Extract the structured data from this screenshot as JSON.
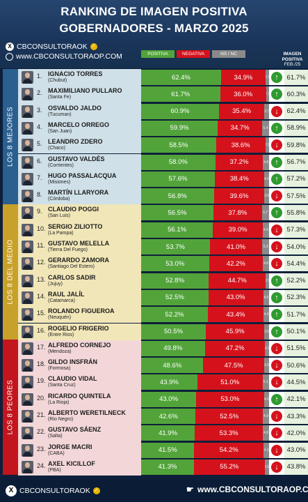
{
  "title_line1": "RANKING DE IMAGEN POSITIVA",
  "title_line2": "GOBERNADORES - MARZO 2025",
  "brand": {
    "handle": "CBCONSULTORAOK",
    "website": "www.CBCONSULTORAOP.COM"
  },
  "legend": {
    "positive": "POSITIVA",
    "negative": "NEGATIVA",
    "ns": "NS / NC"
  },
  "prev_header": {
    "line1": "IMAGEN",
    "line2": "POSITIVA",
    "line3": "FEB./25"
  },
  "groups": [
    "LOS 8 MEJORES",
    "LOS 8 DEL MEDIO",
    "LOS 8 PEORES"
  ],
  "colors": {
    "positive": "#52a43a",
    "negative": "#d5121c",
    "ns": "#8a8a8a",
    "up": "#2f9a2f",
    "down": "#d5121c"
  },
  "footer": {
    "handle": "CBCONSULTORAOK",
    "website": "www.CBCONSULTORAOP.COM"
  },
  "chart_data": {
    "type": "bar",
    "title": "RANKING DE IMAGEN POSITIVA GOBERNADORES - MARZO 2025",
    "series_names": [
      "POSITIVA",
      "NEGATIVA",
      "NS / NC",
      "IMAGEN POSITIVA FEB./25"
    ],
    "rows": [
      {
        "rank": "1.",
        "name": "IGNACIO TORRES",
        "province": "(Chubut)",
        "positive": "62.4%",
        "negative": "34.9%",
        "ns": "2.7",
        "trend": "up",
        "prev": "61.7%"
      },
      {
        "rank": "2.",
        "name": "MAXIMILIANO PULLARO",
        "province": "(Santa Fe)",
        "positive": "61.7%",
        "negative": "36.0%",
        "ns": "2.3",
        "trend": "up",
        "prev": "60.3%"
      },
      {
        "rank": "3.",
        "name": "OSVALDO JALDO",
        "province": "(Tucuman)",
        "positive": "60.9%",
        "negative": "35.4%",
        "ns": "3.7",
        "trend": "down",
        "prev": "62.4%"
      },
      {
        "rank": "4.",
        "name": "MARCELO ORREGO",
        "province": "(San Juan)",
        "positive": "59.9%",
        "negative": "34.7%",
        "ns": "5.4",
        "trend": "up",
        "prev": "58.9%"
      },
      {
        "rank": "5.",
        "name": "LEANDRO ZDERO",
        "province": "(Chaco)",
        "positive": "58.5%",
        "negative": "38.6%",
        "ns": "2.9",
        "trend": "down",
        "prev": "59.8%"
      },
      {
        "rank": "6.",
        "name": "GUSTAVO VALDÉS",
        "province": "(Corrientes)",
        "positive": "58.0%",
        "negative": "37.2%",
        "ns": "4.8",
        "trend": "up",
        "prev": "56.7%"
      },
      {
        "rank": "7.",
        "name": "HUGO PASSALACQUA",
        "province": "(Misiones)",
        "positive": "57.6%",
        "negative": "38.4%",
        "ns": "4.0",
        "trend": "up",
        "prev": "57.2%"
      },
      {
        "rank": "8.",
        "name": "MARTÍN LLARYORA",
        "province": "(Córdoba)",
        "positive": "56.8%",
        "negative": "39.6%",
        "ns": "3.6",
        "trend": "down",
        "prev": "57.5%"
      },
      {
        "rank": "9.",
        "name": "CLAUDIO POGGI",
        "province": "(San Luis)",
        "positive": "56.5%",
        "negative": "37.8%",
        "ns": "5.7",
        "trend": "up",
        "prev": "55.8%"
      },
      {
        "rank": "10.",
        "name": "SERGIO ZILIOTTO",
        "province": "(La Pampa)",
        "positive": "56.1%",
        "negative": "39.0%",
        "ns": "4.9",
        "trend": "down",
        "prev": "57.3%"
      },
      {
        "rank": "11.",
        "name": "GUSTAVO MELELLA",
        "province": "(Tierra Del Fuego)",
        "positive": "53.7%",
        "negative": "41.0%",
        "ns": "5.3",
        "trend": "down",
        "prev": "54.0%"
      },
      {
        "rank": "12.",
        "name": "GERARDO ZAMORA",
        "province": "(Santiago Del Estero)",
        "positive": "53.0%",
        "negative": "42.2%",
        "ns": "4.8",
        "trend": "down",
        "prev": "54.4%"
      },
      {
        "rank": "13.",
        "name": "CARLOS SADIR",
        "province": "(Jujuy)",
        "positive": "52.8%",
        "negative": "44.7%",
        "ns": "2.5",
        "trend": "up",
        "prev": "52.2%"
      },
      {
        "rank": "14.",
        "name": "RAUL JALÍL",
        "province": "(Catamarca)",
        "positive": "52.5%",
        "negative": "43.0%",
        "ns": "4.5",
        "trend": "up",
        "prev": "52.3%"
      },
      {
        "rank": "15.",
        "name": "ROLANDO FIGUEROA",
        "province": "(Neuquén)",
        "positive": "52.2%",
        "negative": "43.4%",
        "ns": "4.4",
        "trend": "up",
        "prev": "51.7%"
      },
      {
        "rank": "16.",
        "name": "ROGELIO FRIGERIO",
        "province": "(Entre Rios)",
        "positive": "50.5%",
        "negative": "45.9%",
        "ns": "3.6",
        "trend": "up",
        "prev": "50.1%"
      },
      {
        "rank": "17.",
        "name": "ALFREDO CORNEJO",
        "province": "(Mendoza)",
        "positive": "49.8%",
        "negative": "47.2%",
        "ns": "3.0",
        "trend": "down",
        "prev": "51.5%"
      },
      {
        "rank": "18.",
        "name": "GILDO INSFRÁN",
        "province": "(Formosa)",
        "positive": "48.6%",
        "negative": "47.5%",
        "ns": "3.9",
        "trend": "down",
        "prev": "50.6%"
      },
      {
        "rank": "19.",
        "name": "CLAUDIO VIDAL",
        "province": "(Santa Cruz)",
        "positive": "43.9%",
        "negative": "51.0%",
        "ns": "5.1",
        "trend": "down",
        "prev": "44.5%"
      },
      {
        "rank": "20.",
        "name": "RICARDO QUINTELA",
        "province": "(La Rioja)",
        "positive": "43.0%",
        "negative": "53.0%",
        "ns": "4.0",
        "trend": "up",
        "prev": "42.1%"
      },
      {
        "rank": "21.",
        "name": "ALBERTO WERETILNECK",
        "province": "(Rio Negro)",
        "positive": "42.6%",
        "negative": "52.5%",
        "ns": "4.9",
        "trend": "down",
        "prev": "43.3%"
      },
      {
        "rank": "22.",
        "name": "GUSTAVO SÁENZ",
        "province": "(Salta)",
        "positive": "41.9%",
        "negative": "53.3%",
        "ns": "4.8",
        "trend": "down",
        "prev": "42.0%"
      },
      {
        "rank": "23.",
        "name": "JORGE MACRI",
        "province": "(CABA)",
        "positive": "41.5%",
        "negative": "54.2%",
        "ns": "4.3",
        "trend": "down",
        "prev": "43.0%"
      },
      {
        "rank": "24.",
        "name": "AXEL KICILLOF",
        "province": "(PBA)",
        "positive": "41.3%",
        "negative": "55.2%",
        "ns": "3.5",
        "trend": "down",
        "prev": "43.8%"
      }
    ]
  }
}
